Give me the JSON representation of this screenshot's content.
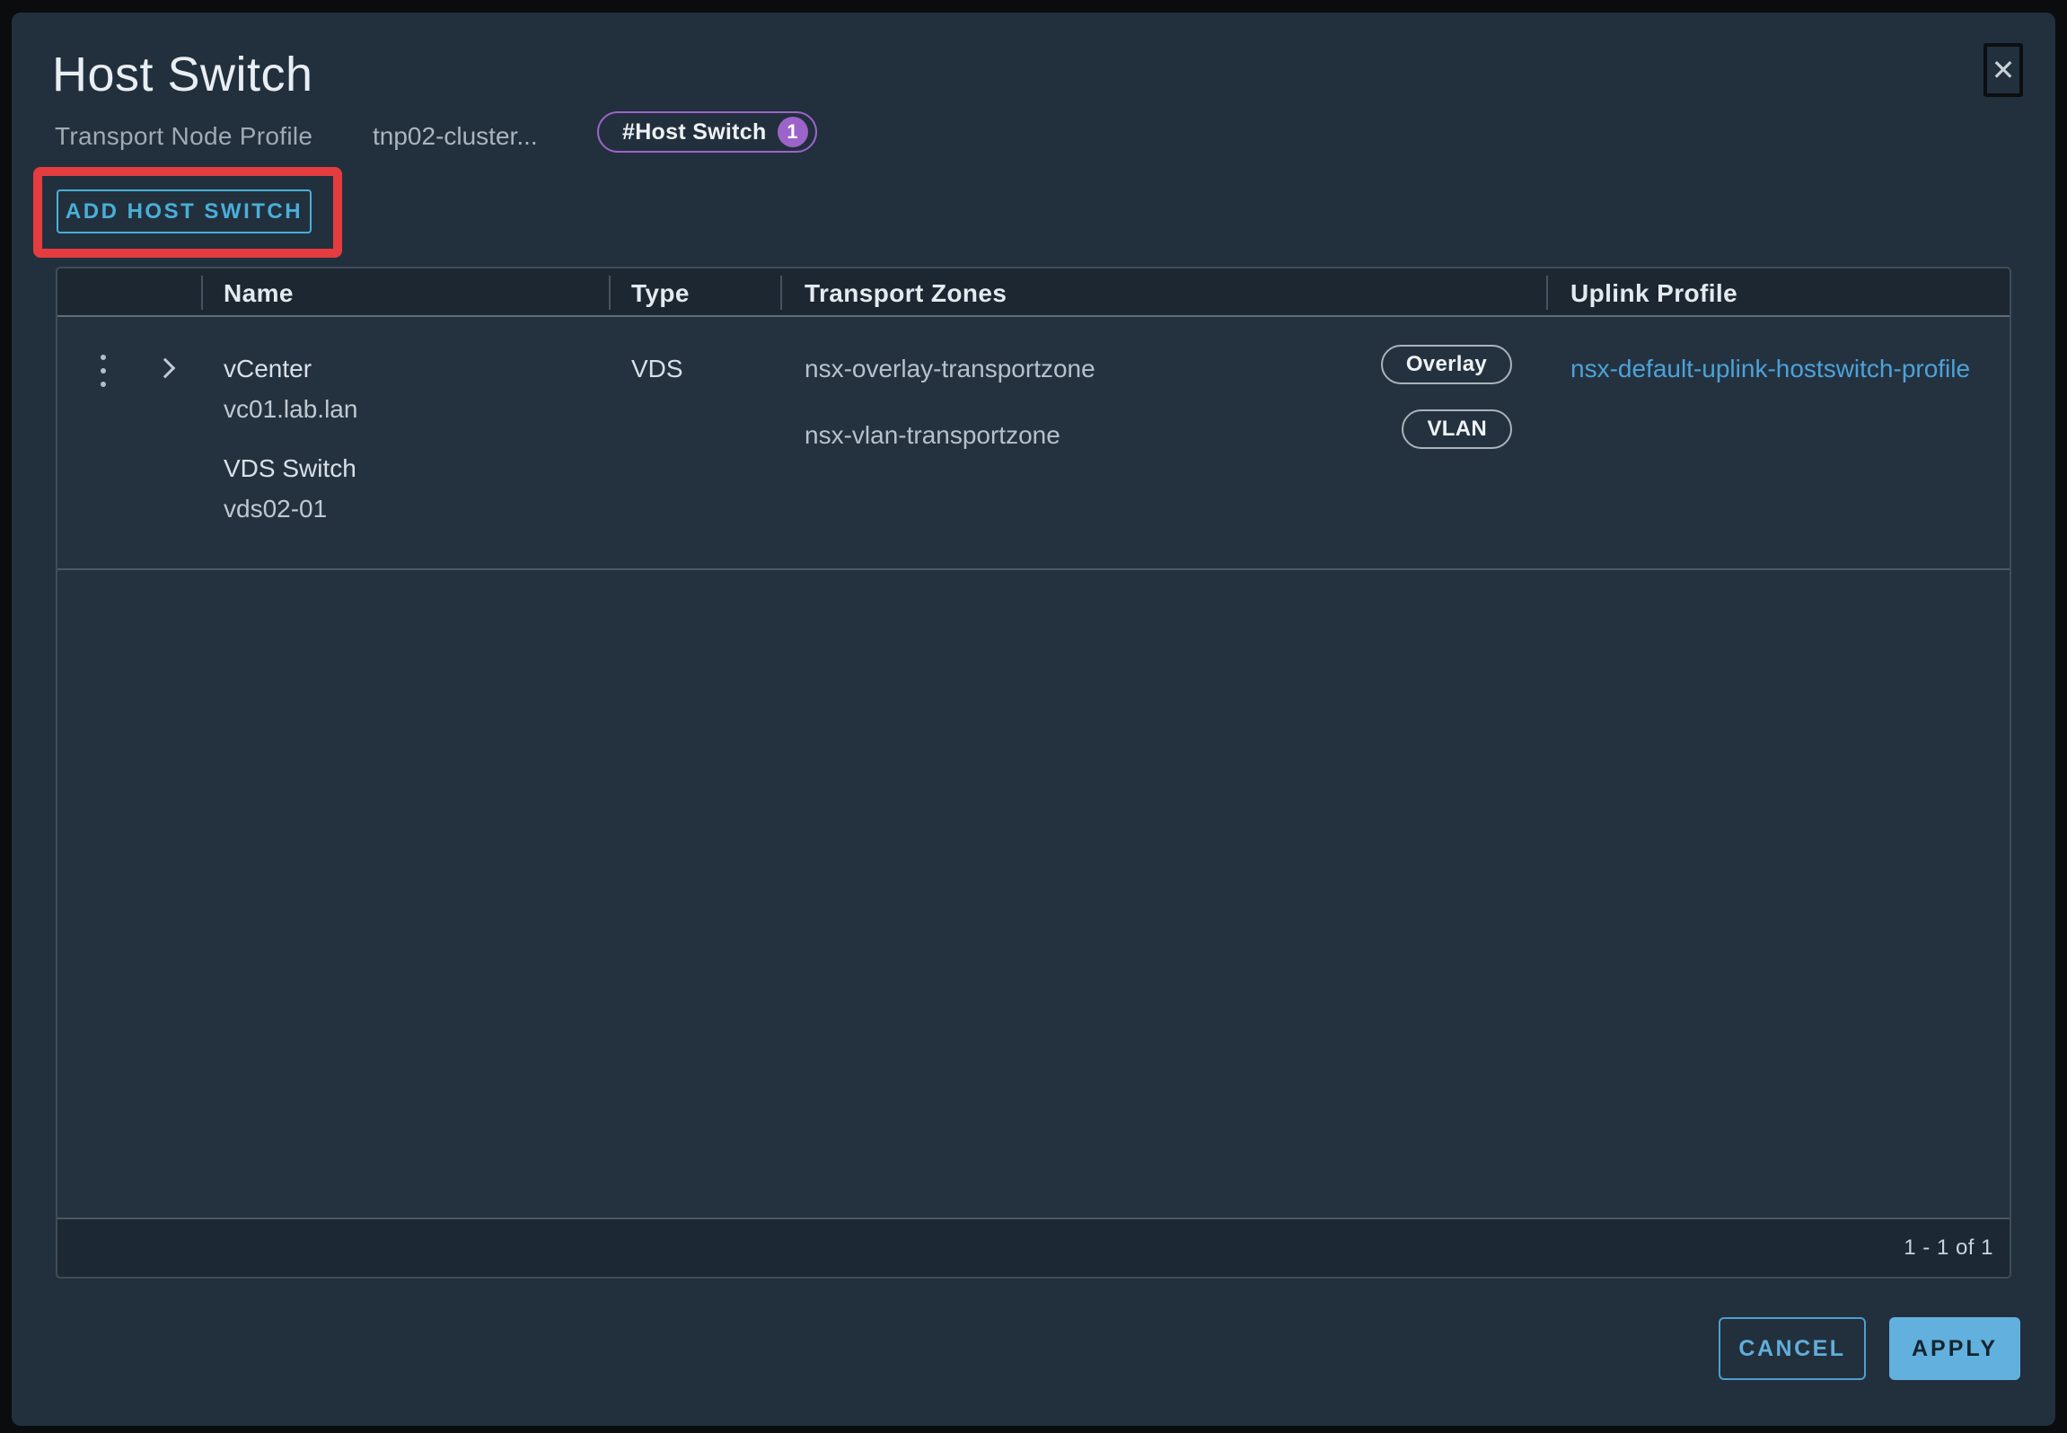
{
  "dialog": {
    "title": "Host Switch",
    "close_glyph": "✕",
    "subheader": {
      "label": "Transport Node Profile",
      "value": "tnp02-cluster...",
      "badge": {
        "text": "#Host Switch",
        "count": "1"
      }
    },
    "add_button_label": "ADD HOST SWITCH"
  },
  "table": {
    "columns": [
      "Name",
      "Type",
      "Transport Zones",
      "Uplink Profile"
    ],
    "rows": [
      {
        "name_primary": "vCenter",
        "name_secondary": "vc01.lab.lan",
        "switch_label": "VDS Switch",
        "switch_value": "vds02-01",
        "type": "VDS",
        "transport_zones": [
          {
            "name": "nsx-overlay-transportzone",
            "badge": "Overlay"
          },
          {
            "name": "nsx-vlan-transportzone",
            "badge": "VLAN"
          }
        ],
        "uplink_profile": "nsx-default-uplink-hostswitch-profile"
      }
    ],
    "pagination": "1 - 1 of 1"
  },
  "footer_buttons": {
    "cancel": "CANCEL",
    "apply": "APPLY"
  },
  "colors": {
    "dialog_bg": "#22303d",
    "table_bg": "#243240",
    "header_bg": "#1d2731",
    "footer_bg": "#1c2834",
    "accent_blue": "#49afd9",
    "link_blue": "#4da2d9",
    "apply_bg": "#62b0dd",
    "badge_purple": "#9c63c9",
    "annotation_red": "#e53c40"
  }
}
